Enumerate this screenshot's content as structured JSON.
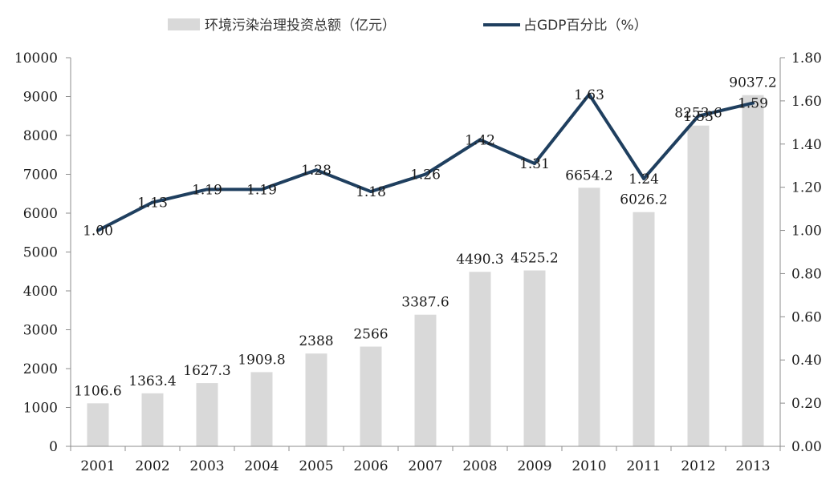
{
  "chart_data": {
    "type": "bar",
    "categories": [
      "2001",
      "2002",
      "2003",
      "2004",
      "2005",
      "2006",
      "2007",
      "2008",
      "2009",
      "2010",
      "2011",
      "2012",
      "2013"
    ],
    "series": [
      {
        "name": "环境污染治理投资总额（亿元）",
        "type": "bar",
        "axis": "left",
        "color": "#d9d9d9",
        "values": [
          1106.6,
          1363.4,
          1627.3,
          1909.8,
          2388,
          2566,
          3387.6,
          4490.3,
          4525.2,
          6654.2,
          6026.2,
          8253.6,
          9037.2
        ],
        "labels": [
          "1106.6",
          "1363.4",
          "1627.3",
          "1909.8",
          "2388",
          "2566",
          "3387.6",
          "4490.3",
          "4525.2",
          "6654.2",
          "6026.2",
          "8253.6",
          "9037.2"
        ]
      },
      {
        "name": "占GDP百分比（%）",
        "type": "line",
        "axis": "right",
        "color": "#1f3f5f",
        "values": [
          1.0,
          1.13,
          1.19,
          1.19,
          1.28,
          1.18,
          1.26,
          1.42,
          1.31,
          1.63,
          1.24,
          1.53,
          1.59
        ],
        "labels": [
          "1.00",
          "1.13",
          "1.19",
          "1.19",
          "1.28",
          "1.18",
          "1.26",
          "1.42",
          "1.31",
          "1.63",
          "1.24",
          "1.53",
          "1.59"
        ]
      }
    ],
    "y_left": {
      "ylim": [
        0,
        10000
      ],
      "ticks": [
        "0",
        "1000",
        "2000",
        "3000",
        "4000",
        "5000",
        "6000",
        "7000",
        "8000",
        "9000",
        "10000"
      ]
    },
    "y_right": {
      "ylim": [
        0,
        1.8
      ],
      "ticks": [
        "0.00",
        "0.20",
        "0.40",
        "0.60",
        "0.80",
        "1.00",
        "1.20",
        "1.40",
        "1.60",
        "1.80"
      ]
    },
    "grid": false,
    "legend": "top-center"
  }
}
